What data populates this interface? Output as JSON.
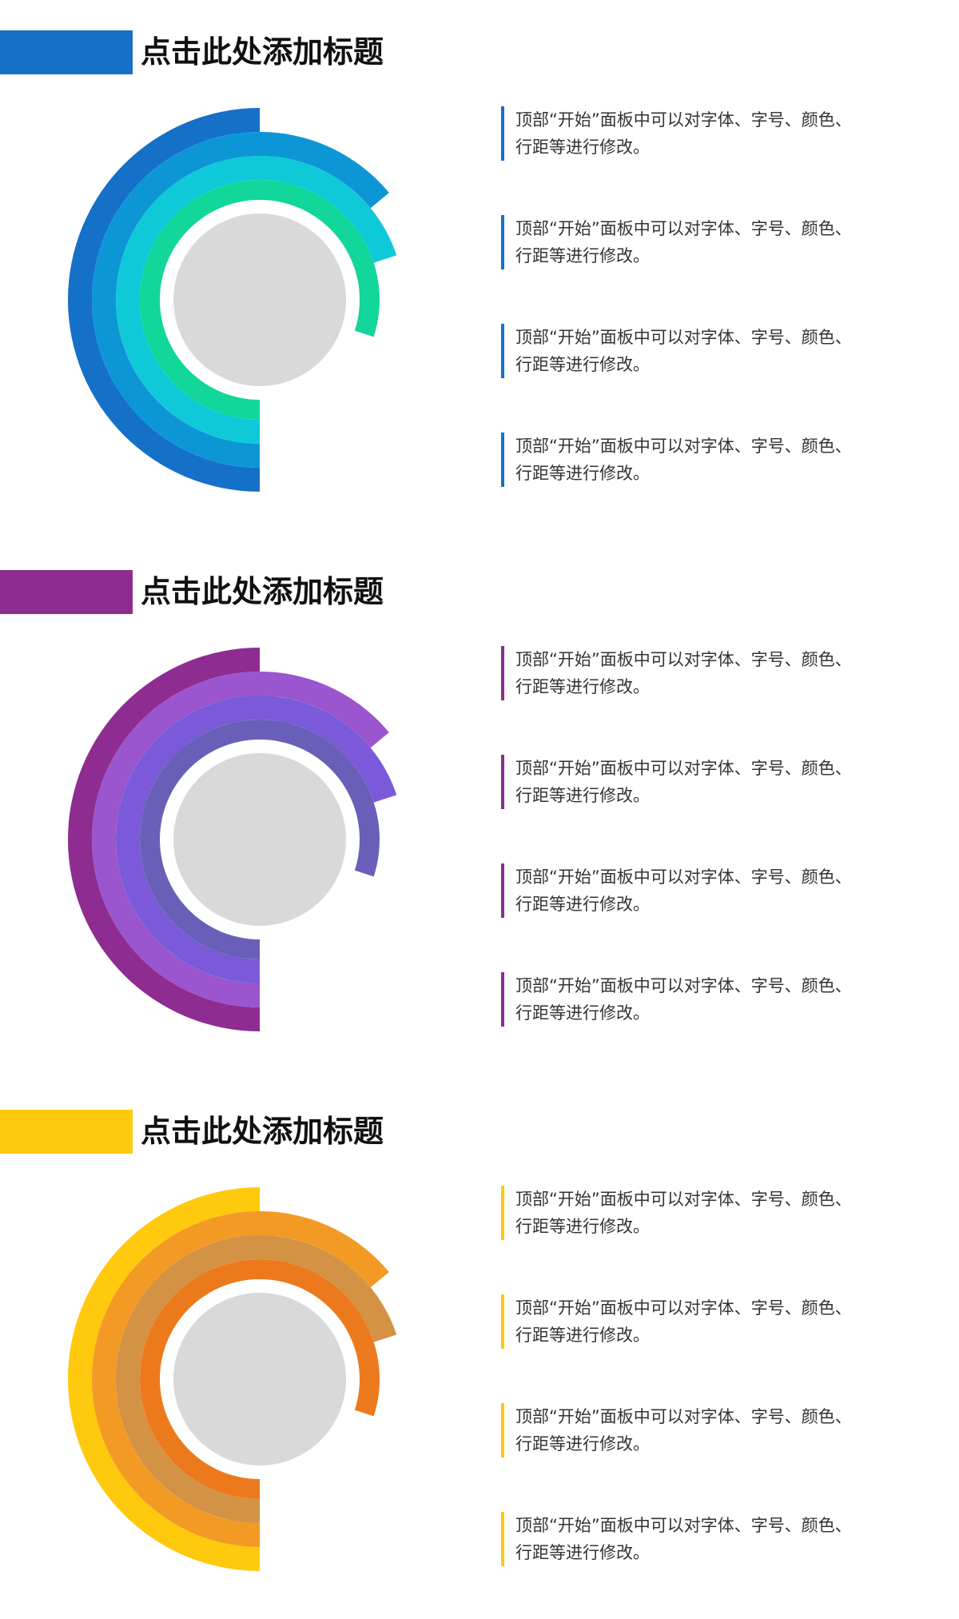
{
  "sections": [
    {
      "title": "点击此处添加标题",
      "accent": "#1570C8",
      "ring_colors": [
        "#1570C8",
        "#0D96D6",
        "#0FC9D8",
        "#12D69A"
      ],
      "ring_extent": [
        0.5,
        0.64,
        0.7,
        0.8
      ],
      "items": [
        {
          "line1": "顶部“开始”面板中可以对字体、字号、颜色、",
          "line2": "行距等进行修改。"
        },
        {
          "line1": "顶部“开始”面板中可以对字体、字号、颜色、",
          "line2": "行距等进行修改。"
        },
        {
          "line1": "顶部“开始”面板中可以对字体、字号、颜色、",
          "line2": "行距等进行修改。"
        },
        {
          "line1": "顶部“开始”面板中可以对字体、字号、颜色、",
          "line2": "行距等进行修改。"
        }
      ]
    },
    {
      "title": "点击此处添加标题",
      "accent": "#8E2C92",
      "ring_colors": [
        "#8E2C92",
        "#9B55CF",
        "#7A5AD8",
        "#6A5FB8"
      ],
      "ring_extent": [
        0.5,
        0.64,
        0.7,
        0.8
      ],
      "items": [
        {
          "line1": "顶部“开始”面板中可以对字体、字号、颜色、",
          "line2": "行距等进行修改。"
        },
        {
          "line1": "顶部“开始”面板中可以对字体、字号、颜色、",
          "line2": "行距等进行修改。"
        },
        {
          "line1": "顶部“开始”面板中可以对字体、字号、颜色、",
          "line2": "行距等进行修改。"
        },
        {
          "line1": "顶部“开始”面板中可以对字体、字号、颜色、",
          "line2": "行距等进行修改。"
        }
      ]
    },
    {
      "title": "点击此处添加标题",
      "accent": "#FFC90E",
      "ring_colors": [
        "#FFC90E",
        "#F39A25",
        "#D49245",
        "#EC7A1D"
      ],
      "ring_extent": [
        0.5,
        0.64,
        0.7,
        0.8
      ],
      "items": [
        {
          "line1": "顶部“开始”面板中可以对字体、字号、颜色、",
          "line2": "行距等进行修改。"
        },
        {
          "line1": "顶部“开始”面板中可以对字体、字号、颜色、",
          "line2": "行距等进行修改。"
        },
        {
          "line1": "顶部“开始”面板中可以对字体、字号、颜色、",
          "line2": "行距等进行修改。"
        },
        {
          "line1": "顶部“开始”面板中可以对字体、字号、颜色、",
          "line2": "行距等进行修改。"
        }
      ]
    }
  ]
}
